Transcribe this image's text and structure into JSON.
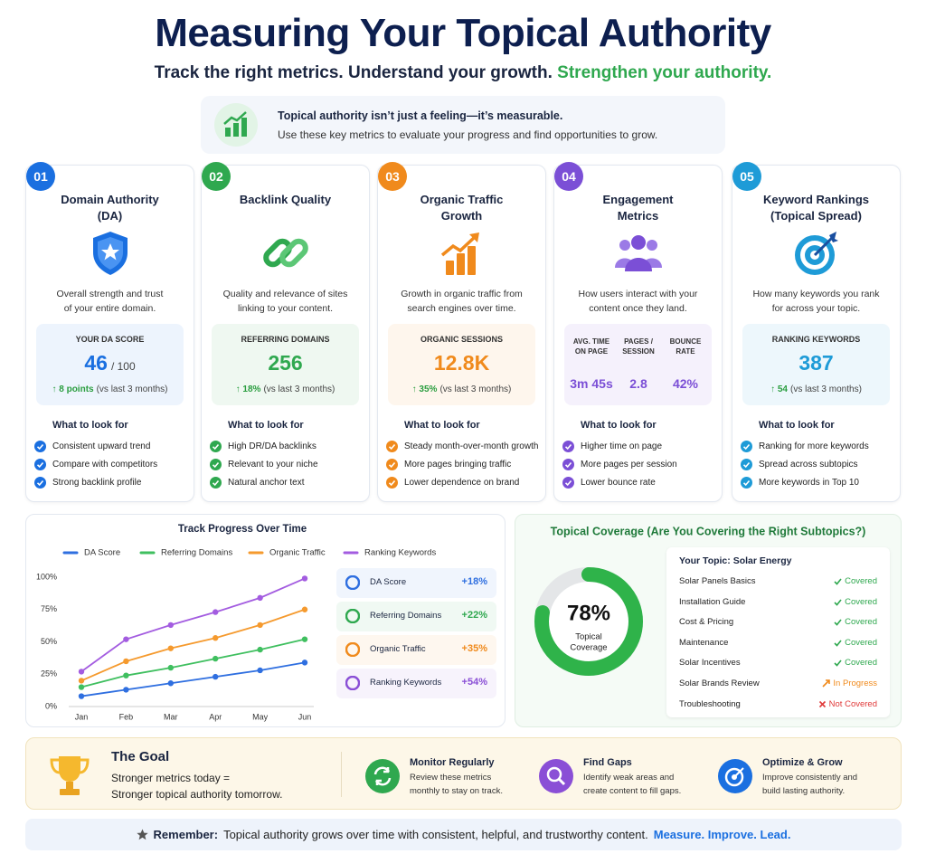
{
  "header": {
    "title": "Measuring Your Topical Authority",
    "subtitle": "Track the right metrics. Understand your growth.",
    "subtitle_highlight": "Strengthen your authority."
  },
  "intro": {
    "heading": "Topical authority isn’t just a feeling—it’s measurable.",
    "text": "Use these key metrics to evaluate your progress and find opportunities to grow."
  },
  "look_for_heading": "What to look for",
  "cards": [
    {
      "number": "01",
      "color": "#1a6fe0",
      "title": [
        "Domain Authority",
        "(DA)"
      ],
      "description": [
        "Overall strength and trust",
        "of your entire domain."
      ],
      "stats": [
        {
          "label": "YOUR DA SCORE",
          "value": 46,
          "suffix": "/ 100"
        }
      ],
      "change": "↑ 8 points",
      "note": "(vs last 3 months)",
      "items": [
        "Consistent upward trend",
        "Compare with competitors",
        "Strong backlink profile"
      ]
    },
    {
      "number": "02",
      "color": "#2fa84f",
      "title": [
        "Backlink Quality"
      ],
      "description": [
        "Quality and relevance of sites",
        "linking to your content."
      ],
      "stats": [
        {
          "label": "REFERRING DOMAINS",
          "value": 256
        }
      ],
      "change": "↑ 18%",
      "note": "(vs last 3 months)",
      "items": [
        "High DR/DA backlinks",
        "Relevant to your niche",
        "Natural anchor text"
      ]
    },
    {
      "number": "03",
      "color": "#f08a1c",
      "title": [
        "Organic Traffic",
        "Growth"
      ],
      "description": [
        "Growth in organic traffic from",
        "search engines over time."
      ],
      "stats": [
        {
          "label": "ORGANIC SESSIONS",
          "value": "12.8K"
        }
      ],
      "change": "↑ 35%",
      "note": "(vs last 3 months)",
      "items": [
        "Steady month-over-month growth",
        "More pages bringing traffic",
        "Lower dependence on brand"
      ]
    },
    {
      "number": "04",
      "color": "#7b4fd6",
      "title": [
        "Engagement",
        "Metrics"
      ],
      "description": [
        "How users interact with your",
        "content once they land."
      ],
      "stats": [
        {
          "label": "AVG. TIME ON PAGE",
          "value": "3m 45s"
        },
        {
          "label": "PAGES / SESSION",
          "value": 2.8
        },
        {
          "label": "BOUNCE RATE",
          "value": "42%"
        }
      ],
      "items": [
        "Higher time on page",
        "More pages per session",
        "Lower bounce rate"
      ]
    },
    {
      "number": "05",
      "color": "#1e9bd7",
      "title": [
        "Keyword Rankings",
        "(Topical Spread)"
      ],
      "description": [
        "How many keywords you rank",
        "for across your topic."
      ],
      "stats": [
        {
          "label": "RANKING KEYWORDS",
          "value": 387
        }
      ],
      "change": "↑ 54",
      "note": "(vs last 3 months)",
      "items": [
        "Ranking for more keywords",
        "Spread across subtopics",
        "More keywords in Top 10"
      ]
    }
  ],
  "chart_data": [
    {
      "type": "line",
      "title": "Track Progress Over Time",
      "categories": [
        "Jan",
        "Feb",
        "Mar",
        "Apr",
        "May",
        "Jun"
      ],
      "series": [
        {
          "name": "DA Score",
          "color": "#2f6fe0",
          "values": [
            8,
            13,
            18,
            23,
            28,
            34
          ]
        },
        {
          "name": "Referring Domains",
          "color": "#3fbf5f",
          "values": [
            15,
            24,
            30,
            37,
            44,
            52
          ]
        },
        {
          "name": "Organic Traffic",
          "color": "#f59a2e",
          "values": [
            20,
            35,
            45,
            53,
            63,
            75
          ]
        },
        {
          "name": "Ranking Keywords",
          "color": "#a35ce0",
          "values": [
            27,
            52,
            63,
            73,
            84,
            99
          ]
        }
      ],
      "ylim": [
        0,
        100
      ],
      "yticks": [
        {
          "value": 0,
          "label": "0%"
        },
        {
          "value": 25,
          "label": "25%"
        },
        {
          "value": 50,
          "label": "50%"
        },
        {
          "value": 75,
          "label": "75%"
        },
        {
          "value": 100,
          "label": "100%"
        }
      ],
      "grid": false,
      "legend": "top"
    },
    {
      "type": "donut",
      "title": "Topical Coverage (Are You Covering the Right Subtopics?)",
      "values": [
        78
      ],
      "value_labels": [
        "78%"
      ],
      "range": [
        0,
        100
      ],
      "center_label": [
        "Topical",
        "Coverage"
      ],
      "color": "#2fb34a"
    }
  ],
  "progress_highlights": [
    {
      "name": "DA Score",
      "change": "+18%",
      "color": "#2f6fe0"
    },
    {
      "name": "Referring Domains",
      "change": "+22%",
      "color": "#2fa84f"
    },
    {
      "name": "Organic Traffic",
      "change": "+35%",
      "color": "#f08a1c"
    },
    {
      "name": "Ranking Keywords",
      "change": "+54%",
      "color": "#8a4fd6"
    }
  ],
  "coverage": {
    "heading": "Your Topic: Solar Energy",
    "rows": [
      {
        "name": "Solar Panels Basics",
        "status": "Covered",
        "color": "#2fa84f",
        "icon": "check"
      },
      {
        "name": "Installation Guide",
        "status": "Covered",
        "color": "#2fa84f",
        "icon": "check"
      },
      {
        "name": "Cost & Pricing",
        "status": "Covered",
        "color": "#2fa84f",
        "icon": "check"
      },
      {
        "name": "Maintenance",
        "status": "Covered",
        "color": "#2fa84f",
        "icon": "check"
      },
      {
        "name": "Solar Incentives",
        "status": "Covered",
        "color": "#2fa84f",
        "icon": "check"
      },
      {
        "name": "Solar Brands Review",
        "status": "In Progress",
        "color": "#f08a1c",
        "icon": "arrow"
      },
      {
        "name": "Troubleshooting",
        "status": "Not Covered",
        "color": "#e03a3a",
        "icon": "cross"
      }
    ]
  },
  "goal": {
    "title": "The Goal",
    "lines": [
      "Stronger metrics today =",
      "Stronger topical authority tomorrow."
    ],
    "steps": [
      {
        "title": "Monitor Regularly",
        "lines": [
          "Review these metrics",
          "monthly to stay on track."
        ],
        "color": "#2fa84f"
      },
      {
        "title": "Find Gaps",
        "lines": [
          "Identify weak areas and",
          "create content to fill gaps."
        ],
        "color": "#8a4fd6"
      },
      {
        "title": "Optimize & Grow",
        "lines": [
          "Improve consistently and",
          "build lasting authority."
        ],
        "color": "#1a6fe0"
      }
    ]
  },
  "footer": {
    "label": "Remember:",
    "text": "Topical authority grows over time with consistent, helpful, and trustworthy content.",
    "emphasis": "Measure. Improve. Lead."
  }
}
